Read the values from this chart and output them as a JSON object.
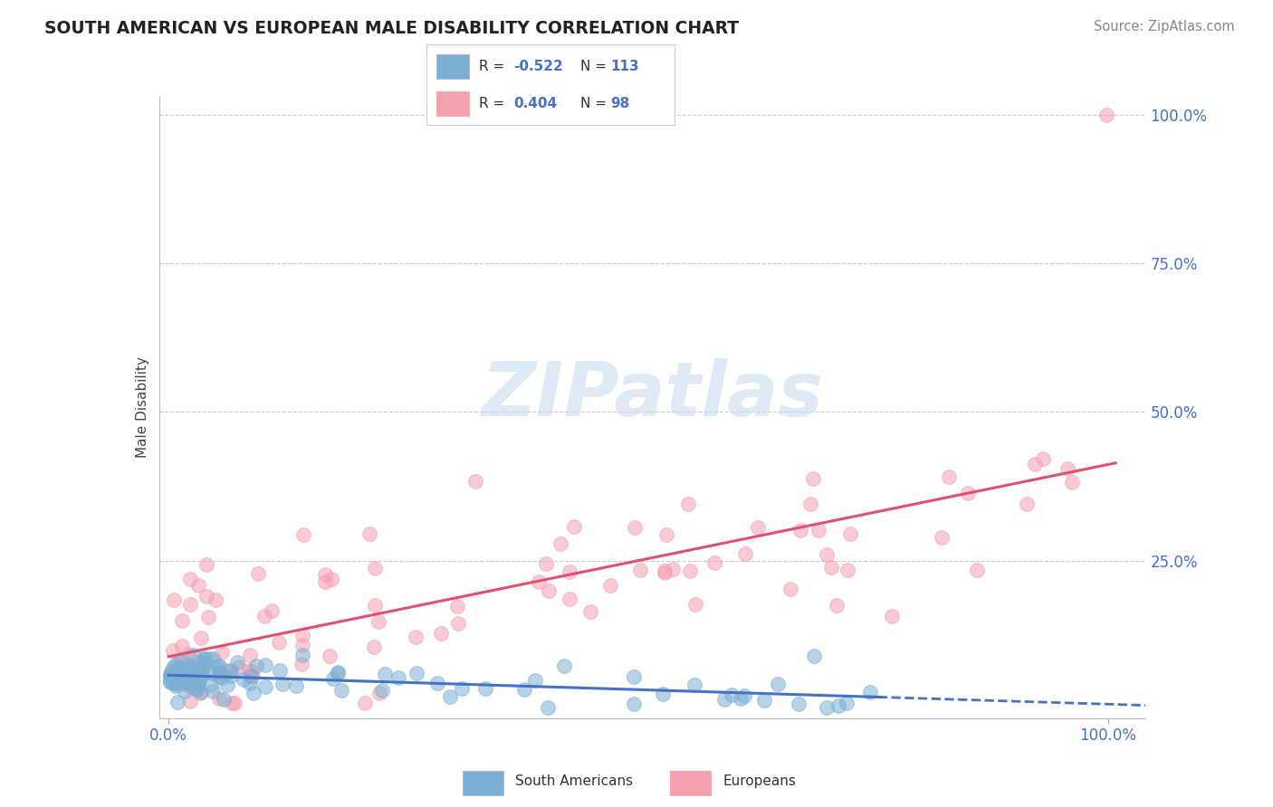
{
  "title": "SOUTH AMERICAN VS EUROPEAN MALE DISABILITY CORRELATION CHART",
  "source": "Source: ZipAtlas.com",
  "ylabel": "Male Disability",
  "sa_R": -0.522,
  "sa_N": 113,
  "eu_R": 0.404,
  "eu_N": 98,
  "sa_color": "#7BAFD4",
  "eu_color": "#F4A0B0",
  "sa_line_color": "#4472C4",
  "eu_line_color": "#E05070",
  "watermark_color": "#D0DCF0",
  "background_color": "#ffffff",
  "grid_color": "#cccccc",
  "ylim": [
    0,
    1.0
  ],
  "xlim": [
    0,
    1.0
  ],
  "ytick_values": [
    0.25,
    0.5,
    0.75,
    1.0
  ],
  "ytick_labels": [
    "25.0%",
    "50.0%",
    "75.0%",
    "100.0%"
  ],
  "xtick_values": [
    0.0,
    1.0
  ],
  "xtick_labels": [
    "0.0%",
    "100.0%"
  ]
}
